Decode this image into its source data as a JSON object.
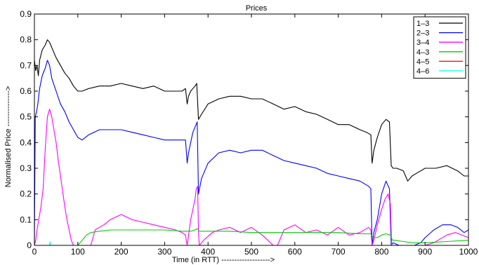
{
  "chart_data": {
    "type": "line",
    "title": "Prices",
    "xlabel": "Time (in RTT) ------------------->",
    "ylabel": "Normalised Price -------------->",
    "xlim": [
      0,
      1000
    ],
    "ylim": [
      0,
      0.9
    ],
    "xticks": [
      "0",
      "100",
      "200",
      "300",
      "400",
      "500",
      "600",
      "700",
      "800",
      "900",
      "1000"
    ],
    "yticks": [
      "0",
      "0.1",
      "0.2",
      "0.3",
      "0.4",
      "0.5",
      "0.6",
      "0.7",
      "0.8",
      "0.9"
    ],
    "grid": false,
    "legend_position": "top-right",
    "series": [
      {
        "name": "1–3",
        "color": "#000000",
        "x": [
          0,
          3,
          6,
          9,
          12,
          18,
          25,
          30,
          35,
          40,
          50,
          60,
          70,
          80,
          90,
          100,
          110,
          125,
          150,
          175,
          200,
          225,
          250,
          275,
          300,
          325,
          340,
          348,
          352,
          355,
          360,
          365,
          370,
          374,
          378,
          385,
          400,
          425,
          450,
          475,
          500,
          525,
          550,
          575,
          600,
          625,
          650,
          675,
          700,
          725,
          750,
          765,
          775,
          778,
          782,
          790,
          800,
          810,
          818,
          822,
          826,
          835,
          850,
          860,
          870,
          880,
          890,
          900,
          925,
          950,
          975,
          990,
          1000
        ],
        "y": [
          0.72,
          0.68,
          0.7,
          0.66,
          0.72,
          0.76,
          0.78,
          0.8,
          0.79,
          0.77,
          0.73,
          0.7,
          0.67,
          0.65,
          0.62,
          0.6,
          0.6,
          0.61,
          0.62,
          0.62,
          0.63,
          0.62,
          0.61,
          0.62,
          0.6,
          0.6,
          0.6,
          0.61,
          0.55,
          0.58,
          0.6,
          0.61,
          0.62,
          0.63,
          0.49,
          0.51,
          0.55,
          0.57,
          0.58,
          0.58,
          0.57,
          0.57,
          0.55,
          0.53,
          0.54,
          0.52,
          0.51,
          0.49,
          0.47,
          0.47,
          0.45,
          0.44,
          0.43,
          0.32,
          0.37,
          0.42,
          0.47,
          0.49,
          0.48,
          0.31,
          0.3,
          0.3,
          0.29,
          0.25,
          0.27,
          0.28,
          0.29,
          0.3,
          0.3,
          0.31,
          0.29,
          0.27,
          0.27
        ]
      },
      {
        "name": "2–3",
        "color": "#0000ff",
        "x": [
          0,
          2,
          5,
          8,
          12,
          18,
          25,
          30,
          35,
          40,
          50,
          60,
          70,
          80,
          90,
          100,
          110,
          125,
          150,
          175,
          200,
          225,
          250,
          275,
          300,
          325,
          340,
          348,
          352,
          355,
          360,
          365,
          370,
          375,
          378,
          385,
          400,
          425,
          450,
          475,
          500,
          525,
          550,
          575,
          600,
          625,
          650,
          675,
          700,
          725,
          750,
          770,
          775,
          778,
          782,
          790,
          800,
          810,
          818,
          822,
          826,
          840,
          860,
          875,
          890,
          900,
          920,
          940,
          960,
          975,
          990,
          1000
        ],
        "y": [
          0.01,
          0.5,
          0.52,
          0.55,
          0.61,
          0.66,
          0.69,
          0.72,
          0.7,
          0.65,
          0.6,
          0.55,
          0.52,
          0.48,
          0.45,
          0.42,
          0.41,
          0.43,
          0.45,
          0.45,
          0.45,
          0.44,
          0.43,
          0.42,
          0.41,
          0.41,
          0.41,
          0.41,
          0.32,
          0.36,
          0.4,
          0.44,
          0.46,
          0.48,
          0.2,
          0.26,
          0.32,
          0.36,
          0.37,
          0.36,
          0.37,
          0.37,
          0.35,
          0.33,
          0.32,
          0.31,
          0.3,
          0.28,
          0.27,
          0.26,
          0.25,
          0.23,
          0.22,
          0.0,
          0.05,
          0.1,
          0.2,
          0.25,
          0.22,
          0.0,
          0.01,
          0.0,
          0.0,
          0.0,
          0.01,
          0.03,
          0.06,
          0.08,
          0.08,
          0.07,
          0.05,
          0.06
        ]
      },
      {
        "name": "3–4",
        "color": "#ff00ff",
        "x": [
          0,
          3,
          6,
          10,
          15,
          20,
          25,
          30,
          35,
          40,
          45,
          50,
          55,
          60,
          65,
          70,
          75,
          80,
          85,
          90,
          95,
          100,
          110,
          120,
          130,
          140,
          150,
          160,
          175,
          200,
          225,
          250,
          275,
          300,
          325,
          340,
          348,
          352,
          356,
          360,
          365,
          370,
          373,
          376,
          378,
          380,
          390,
          410,
          425,
          450,
          475,
          500,
          525,
          550,
          560,
          575,
          600,
          625,
          650,
          675,
          700,
          725,
          750,
          770,
          775,
          778,
          782,
          790,
          800,
          808,
          815,
          820,
          823,
          830,
          850,
          870,
          880,
          900,
          920,
          950,
          970,
          985,
          1000
        ],
        "y": [
          0.0,
          0.02,
          0.06,
          0.1,
          0.15,
          0.22,
          0.38,
          0.5,
          0.53,
          0.5,
          0.45,
          0.4,
          0.33,
          0.27,
          0.21,
          0.15,
          0.1,
          0.06,
          0.02,
          0.0,
          0.0,
          0.0,
          0.0,
          0.0,
          0.0,
          0.06,
          0.07,
          0.08,
          0.1,
          0.12,
          0.1,
          0.09,
          0.08,
          0.07,
          0.06,
          0.05,
          0.04,
          0.0,
          0.05,
          0.1,
          0.14,
          0.18,
          0.22,
          0.23,
          0.05,
          0.0,
          0.02,
          0.05,
          0.06,
          0.07,
          0.05,
          0.07,
          0.04,
          0.0,
          0.0,
          0.06,
          0.08,
          0.05,
          0.06,
          0.04,
          0.07,
          0.04,
          0.05,
          0.07,
          0.06,
          0.0,
          0.02,
          0.08,
          0.14,
          0.18,
          0.2,
          0.16,
          0.0,
          0.0,
          0.0,
          0.0,
          0.0,
          0.0,
          0.01,
          0.04,
          0.05,
          0.04,
          0.03
        ]
      },
      {
        "name": "4–3",
        "color": "#00cc00",
        "x": [
          0,
          100,
          105,
          110,
          115,
          120,
          130,
          150,
          175,
          200,
          250,
          300,
          340,
          360,
          370,
          375,
          380,
          400,
          450,
          500,
          550,
          600,
          650,
          700,
          750,
          775,
          780,
          790,
          800,
          810,
          820,
          825,
          830,
          850,
          870,
          900,
          950,
          1000
        ],
        "y": [
          0.0,
          0.0,
          0.01,
          0.02,
          0.03,
          0.04,
          0.05,
          0.055,
          0.06,
          0.06,
          0.06,
          0.06,
          0.055,
          0.055,
          0.06,
          0.065,
          0.055,
          0.055,
          0.055,
          0.05,
          0.05,
          0.05,
          0.05,
          0.05,
          0.045,
          0.045,
          0.03,
          0.03,
          0.04,
          0.045,
          0.04,
          0.02,
          0.02,
          0.015,
          0.01,
          0.01,
          0.015,
          0.02
        ]
      },
      {
        "name": "4–5",
        "color": "#ff0000",
        "x": [
          0,
          1000
        ],
        "y": [
          0.0,
          0.0
        ]
      },
      {
        "name": "4–6",
        "color": "#00ffff",
        "x": [
          0,
          30,
          35,
          36,
          37,
          40,
          1000
        ],
        "y": [
          0.0,
          0.0,
          0.0,
          0.015,
          0.0,
          0.0,
          0.0
        ]
      }
    ]
  }
}
